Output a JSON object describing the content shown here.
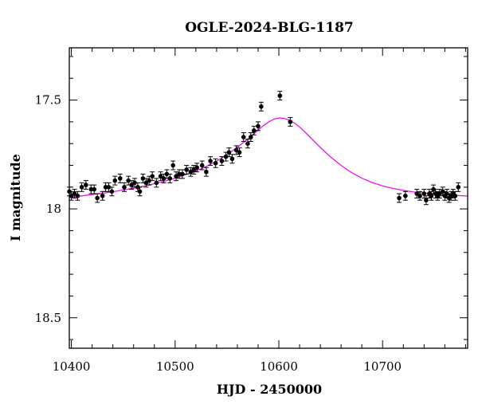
{
  "chart_data": {
    "type": "scatter",
    "title": "OGLE-2024-BLG-1187",
    "xlabel": "HJD - 2450000",
    "ylabel": "I magnitude",
    "xlim": [
      10398,
      10782
    ],
    "ylim": [
      18.64,
      17.26
    ],
    "y_inverted": true,
    "x_major_ticks": [
      10400,
      10500,
      10600,
      10700
    ],
    "x_minor_step": 20,
    "y_major_ticks": [
      17.5,
      18,
      18.5
    ],
    "y_minor_step": 0.1,
    "colors": {
      "model": "#ee11ee",
      "points": "#000000",
      "axes": "#000000"
    },
    "series": [
      {
        "name": "data",
        "style": "points-with-errorbars",
        "x": [
          10398,
          10400,
          10403,
          10406,
          10410,
          10414,
          10419,
          10422,
          10425,
          10430,
          10433,
          10436,
          10439,
          10442,
          10447,
          10451,
          10455,
          10458,
          10461,
          10464,
          10466,
          10469,
          10472,
          10475,
          10478,
          10482,
          10486,
          10489,
          10492,
          10495,
          10498,
          10501,
          10504,
          10507,
          10511,
          10515,
          10518,
          10521,
          10526,
          10530,
          10534,
          10539,
          10545,
          10549,
          10552,
          10555,
          10559,
          10562,
          10566,
          10570,
          10573,
          10576,
          10580,
          10583,
          10601,
          10611,
          10716,
          10722,
          10733,
          10736,
          10740,
          10742,
          10745,
          10747,
          10749,
          10751,
          10753,
          10755,
          10758,
          10760,
          10762,
          10764,
          10766,
          10768,
          10770,
          10773
        ],
        "y": [
          17.92,
          17.94,
          17.93,
          17.94,
          17.9,
          17.89,
          17.91,
          17.91,
          17.95,
          17.94,
          17.9,
          17.9,
          17.92,
          17.87,
          17.86,
          17.9,
          17.87,
          17.89,
          17.88,
          17.9,
          17.92,
          17.86,
          17.88,
          17.87,
          17.85,
          17.88,
          17.85,
          17.86,
          17.84,
          17.86,
          17.8,
          17.85,
          17.84,
          17.84,
          17.82,
          17.83,
          17.82,
          17.81,
          17.8,
          17.83,
          17.78,
          17.79,
          17.78,
          17.76,
          17.74,
          17.77,
          17.73,
          17.74,
          17.67,
          17.7,
          17.67,
          17.64,
          17.62,
          17.53,
          17.48,
          17.6,
          17.95,
          17.94,
          17.93,
          17.94,
          17.93,
          17.96,
          17.93,
          17.94,
          17.91,
          17.93,
          17.94,
          17.93,
          17.92,
          17.94,
          17.93,
          17.95,
          17.94,
          17.93,
          17.94,
          17.9
        ],
        "err": [
          0.02,
          0.02,
          0.02,
          0.02,
          0.02,
          0.02,
          0.02,
          0.02,
          0.02,
          0.02,
          0.02,
          0.02,
          0.02,
          0.02,
          0.02,
          0.02,
          0.02,
          0.02,
          0.02,
          0.02,
          0.02,
          0.02,
          0.02,
          0.02,
          0.02,
          0.02,
          0.02,
          0.02,
          0.02,
          0.02,
          0.02,
          0.02,
          0.02,
          0.02,
          0.02,
          0.02,
          0.02,
          0.02,
          0.02,
          0.02,
          0.02,
          0.02,
          0.02,
          0.02,
          0.02,
          0.02,
          0.02,
          0.02,
          0.02,
          0.02,
          0.02,
          0.02,
          0.02,
          0.02,
          0.02,
          0.02,
          0.02,
          0.02,
          0.02,
          0.02,
          0.02,
          0.02,
          0.02,
          0.02,
          0.02,
          0.02,
          0.02,
          0.02,
          0.02,
          0.02,
          0.02,
          0.02,
          0.02,
          0.02,
          0.02,
          0.02
        ]
      },
      {
        "name": "model",
        "style": "line",
        "x": [
          10398,
          10410,
          10420,
          10430,
          10440,
          10450,
          10460,
          10470,
          10480,
          10490,
          10500,
          10510,
          10520,
          10530,
          10540,
          10550,
          10560,
          10570,
          10580,
          10585,
          10590,
          10595,
          10600,
          10605,
          10610,
          10615,
          10620,
          10625,
          10630,
          10640,
          10650,
          10660,
          10670,
          10680,
          10690,
          10700,
          10710,
          10720,
          10730,
          10740,
          10750,
          10760,
          10770,
          10782
        ],
        "y": [
          17.947,
          17.94,
          17.934,
          17.928,
          17.921,
          17.913,
          17.905,
          17.895,
          17.884,
          17.872,
          17.859,
          17.843,
          17.826,
          17.805,
          17.78,
          17.751,
          17.717,
          17.679,
          17.638,
          17.618,
          17.601,
          17.588,
          17.582,
          17.584,
          17.592,
          17.606,
          17.624,
          17.646,
          17.67,
          17.718,
          17.762,
          17.8,
          17.833,
          17.859,
          17.879,
          17.894,
          17.906,
          17.915,
          17.922,
          17.927,
          17.931,
          17.935,
          17.938,
          17.941
        ]
      }
    ]
  }
}
